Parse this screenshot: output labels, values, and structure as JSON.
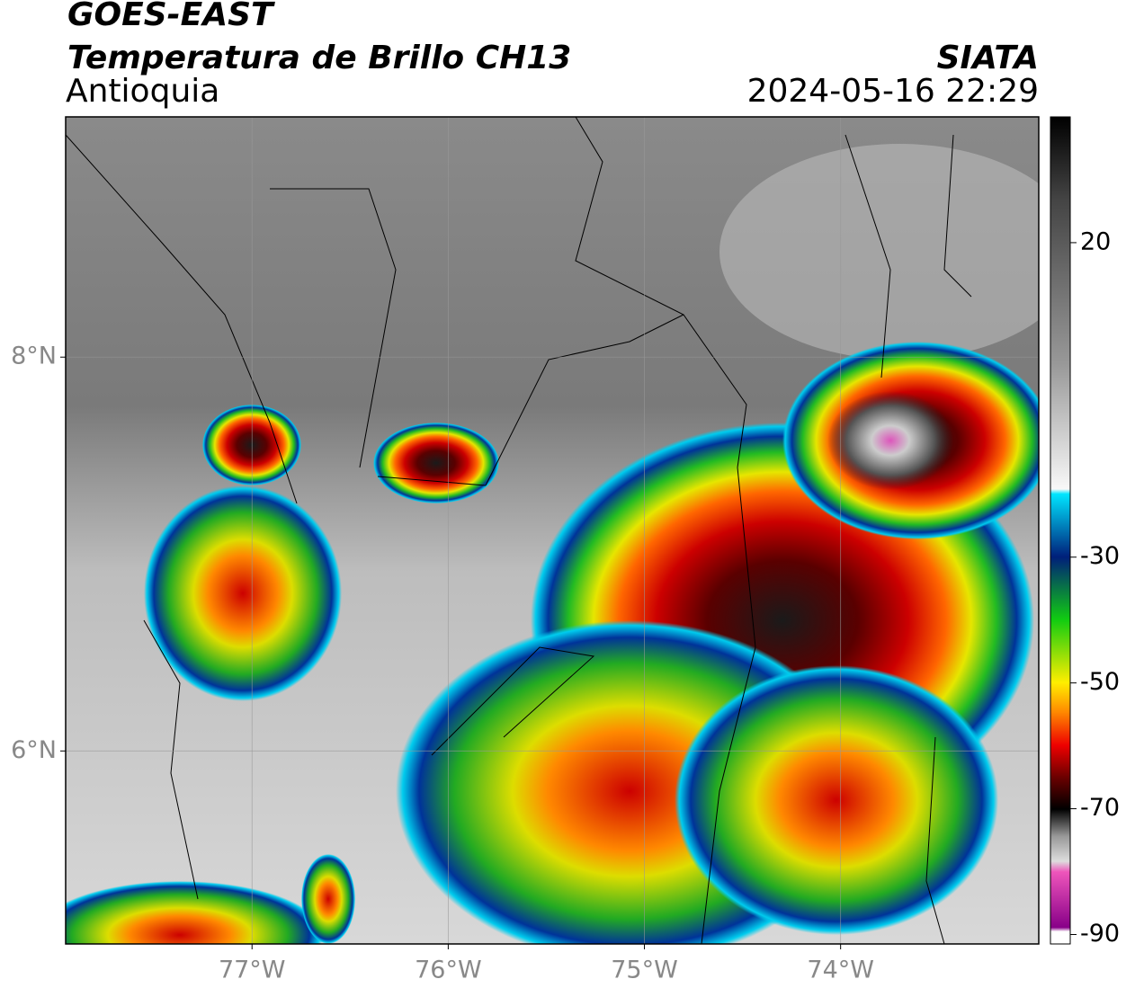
{
  "header": {
    "title": "GOES-EAST",
    "subtitle": "Temperatura de Brillo CH13",
    "region": "Antioquia",
    "source": "SIATA",
    "timestamp": "2024-05-16 22:29"
  },
  "map": {
    "lon_range": [
      -77.95,
      -72.99
    ],
    "lat_range": [
      5.02,
      9.22
    ],
    "lon_ticks": [
      {
        "value": -77,
        "label": "77°W"
      },
      {
        "value": -76,
        "label": "76°W"
      },
      {
        "value": -75,
        "label": "75°W"
      },
      {
        "value": -74,
        "label": "74°W"
      }
    ],
    "lat_ticks": [
      {
        "value": 8,
        "label": "8°N"
      },
      {
        "value": 6,
        "label": "6°N"
      }
    ],
    "grid": true
  },
  "colorbar": {
    "range": [
      -91.5,
      40
    ],
    "ticks": [
      20,
      -30,
      -50,
      -70,
      -90
    ]
  }
}
